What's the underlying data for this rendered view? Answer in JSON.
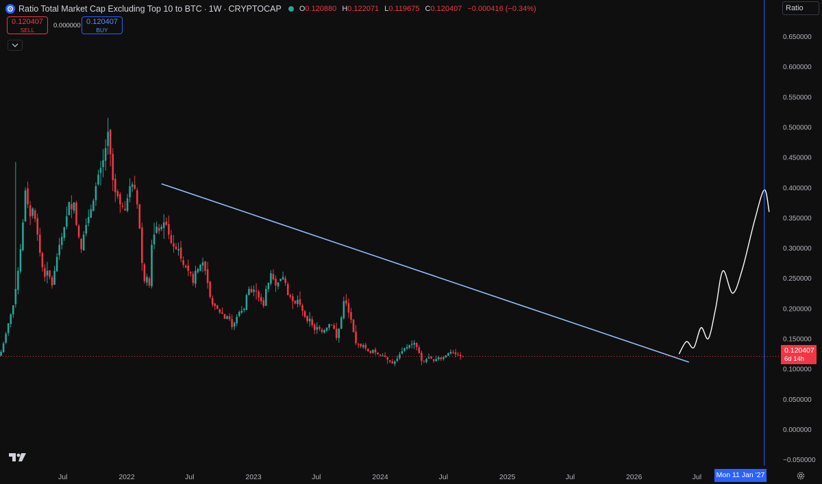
{
  "header": {
    "title": "Ratio Total Market Cap Excluding Top 10 to BTC",
    "interval": "1W",
    "exchange": "CRYPTOCAP",
    "ohlc": [
      {
        "label": "O",
        "value": "0.120880"
      },
      {
        "label": "H",
        "value": "0.122071"
      },
      {
        "label": "L",
        "value": "0.119675"
      },
      {
        "label": "C",
        "value": "0.120407"
      }
    ],
    "change": "−0.000416 (−0.34%)"
  },
  "trade": {
    "sell_price": "0.120407",
    "sell_label": "SELL",
    "spread": "0.000000",
    "buy_price": "0.120407",
    "buy_label": "BUY"
  },
  "scale_label": "Ratio",
  "price_tag": {
    "value": "0.120407",
    "countdown": "6d 14h"
  },
  "crosshair_date": "Mon 11 Jan '27",
  "colors": {
    "background": "#0f0f0f",
    "up": "#26a69a",
    "down": "#f23645",
    "trendline": "#90bff9",
    "crosshair": "#2962ff",
    "projection": "#ffffff"
  },
  "chart_data": {
    "type": "candlestick",
    "y_axis": {
      "range": [
        -0.06,
        0.71
      ],
      "ticks": [
        "0.700000",
        "0.650000",
        "0.600000",
        "0.550000",
        "0.500000",
        "0.450000",
        "0.400000",
        "0.350000",
        "0.300000",
        "0.250000",
        "0.200000",
        "0.150000",
        "0.100000",
        "0.050000",
        "0.000000",
        "−0.050000"
      ],
      "tick_values": [
        0.7,
        0.65,
        0.6,
        0.55,
        0.5,
        0.45,
        0.4,
        0.35,
        0.3,
        0.25,
        0.2,
        0.15,
        0.1,
        0.05,
        0.0,
        -0.05
      ]
    },
    "x_axis": {
      "range": [
        "2021-01-01",
        "2027-02-20"
      ],
      "ticks": [
        {
          "label": "Jul",
          "date": "2021-07-01"
        },
        {
          "label": "2022",
          "date": "2022-01-01"
        },
        {
          "label": "Jul",
          "date": "2022-07-01"
        },
        {
          "label": "2023",
          "date": "2023-01-01"
        },
        {
          "label": "Jul",
          "date": "2023-07-01"
        },
        {
          "label": "2024",
          "date": "2024-01-01"
        },
        {
          "label": "Jul",
          "date": "2024-07-01"
        },
        {
          "label": "2025",
          "date": "2025-01-01"
        },
        {
          "label": "Jul",
          "date": "2025-07-01"
        },
        {
          "label": "2026",
          "date": "2026-01-01"
        },
        {
          "label": "Jul",
          "date": "2026-07-01"
        }
      ]
    },
    "series": {
      "first_week": "2021-01-04",
      "closes": [
        0.128,
        0.142,
        0.158,
        0.175,
        0.19,
        0.205,
        0.232,
        0.262,
        0.298,
        0.342,
        0.395,
        0.372,
        0.352,
        0.365,
        0.348,
        0.322,
        0.292,
        0.268,
        0.252,
        0.262,
        0.252,
        0.238,
        0.262,
        0.285,
        0.305,
        0.318,
        0.334,
        0.352,
        0.376,
        0.364,
        0.375,
        0.338,
        0.318,
        0.298,
        0.322,
        0.338,
        0.351,
        0.364,
        0.378,
        0.402,
        0.421,
        0.432,
        0.445,
        0.465,
        0.492,
        0.455,
        0.412,
        0.392,
        0.385,
        0.372,
        0.368,
        0.362,
        0.382,
        0.402,
        0.405,
        0.398,
        0.372,
        0.332,
        0.275,
        0.245,
        0.252,
        0.238,
        0.305,
        0.322,
        0.335,
        0.328,
        0.335,
        0.342,
        0.338,
        0.322,
        0.308,
        0.302,
        0.298,
        0.298,
        0.282,
        0.272,
        0.268,
        0.262,
        0.258,
        0.242,
        0.262,
        0.265,
        0.272,
        0.276,
        0.262,
        0.242,
        0.219,
        0.206,
        0.204,
        0.199,
        0.193,
        0.191,
        0.183,
        0.187,
        0.182,
        0.169,
        0.176,
        0.186,
        0.194,
        0.196,
        0.199,
        0.222,
        0.232,
        0.226,
        0.231,
        0.229,
        0.218,
        0.212,
        0.204,
        0.232,
        0.242,
        0.258,
        0.248,
        0.238,
        0.243,
        0.249,
        0.252,
        0.242,
        0.222,
        0.219,
        0.212,
        0.208,
        0.214,
        0.206,
        0.196,
        0.186,
        0.179,
        0.183,
        0.172,
        0.164,
        0.169,
        0.166,
        0.161,
        0.164,
        0.168,
        0.174,
        0.172,
        0.166,
        0.151,
        0.166,
        0.185,
        0.212,
        0.208,
        0.193,
        0.181,
        0.161,
        0.142,
        0.14,
        0.137,
        0.139,
        0.134,
        0.129,
        0.126,
        0.131,
        0.127,
        0.124,
        0.123,
        0.122,
        0.12,
        0.115,
        0.112,
        0.109,
        0.112,
        0.117,
        0.124,
        0.129,
        0.134,
        0.136,
        0.139,
        0.141,
        0.143,
        0.136,
        0.126,
        0.113,
        0.112,
        0.116,
        0.119,
        0.117,
        0.113,
        0.116,
        0.119,
        0.116,
        0.119,
        0.122,
        0.126,
        0.128,
        0.126,
        0.124,
        0.122,
        0.121,
        0.1204
      ],
      "wick_outliers": [
        {
          "date": "2025-09-22",
          "low": 0.078
        },
        {
          "date": "2021-02-15",
          "high": 0.442
        },
        {
          "date": "2024-11-25",
          "high": 0.228
        }
      ]
    },
    "last_price": 0.120407,
    "trendline": {
      "start": {
        "date": "2022-04-11",
        "value": 0.406
      },
      "end": {
        "date": "2026-06-08",
        "value": 0.111
      }
    },
    "projection_path": [
      {
        "date": "2026-05-11",
        "value": 0.125
      },
      {
        "date": "2026-06-01",
        "value": 0.145
      },
      {
        "date": "2026-06-22",
        "value": 0.135
      },
      {
        "date": "2026-07-13",
        "value": 0.168
      },
      {
        "date": "2026-08-03",
        "value": 0.15
      },
      {
        "date": "2026-08-24",
        "value": 0.2
      },
      {
        "date": "2026-09-14",
        "value": 0.262
      },
      {
        "date": "2026-10-12",
        "value": 0.225
      },
      {
        "date": "2026-11-09",
        "value": 0.265
      },
      {
        "date": "2026-12-14",
        "value": 0.345
      },
      {
        "date": "2027-01-11",
        "value": 0.396
      },
      {
        "date": "2027-01-25",
        "value": 0.36
      }
    ],
    "crosshair": {
      "date": "2027-01-11"
    }
  }
}
